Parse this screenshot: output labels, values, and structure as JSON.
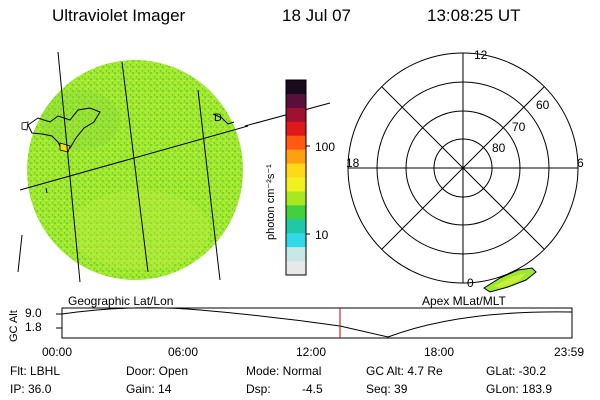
{
  "header": {
    "title": "Ultraviolet Imager",
    "date": "18 Jul 07",
    "time": "13:08:25 UT"
  },
  "colorbar": {
    "unit_label": "photon cm⁻²s⁻¹",
    "ticks": [
      "100",
      "10"
    ],
    "colors": [
      "#1a0a1e",
      "#5a0f3a",
      "#a01030",
      "#e01818",
      "#ff5a10",
      "#ffa010",
      "#ffd818",
      "#f0f020",
      "#a8e820",
      "#40d040",
      "#20c8a8",
      "#30d8e8",
      "#c8e8e8",
      "#e8e8e8"
    ]
  },
  "polar": {
    "hour_labels": {
      "top": "12",
      "left": "18",
      "right": "6",
      "bottom": "0"
    },
    "lat_labels": [
      "60",
      "70",
      "80"
    ]
  },
  "geo_image": {
    "fill_color": "#9ee830",
    "marker": "D"
  },
  "labels": {
    "left_panel": "Geographic Lat/Lon",
    "right_panel": "Apex MLat/MLT"
  },
  "alt_plot": {
    "ylabel": "GC Alt",
    "yticks": [
      "9.0",
      "1.8"
    ],
    "xticks": [
      "00:00",
      "06:00",
      "12:00",
      "18:00",
      "23:59"
    ],
    "current_time_color": "#cc0000"
  },
  "info": {
    "flt": "Flt: LBHL",
    "ip": "IP: 36.0",
    "door": "Door: Open",
    "gain": "Gain: 14",
    "mode": "Mode: Normal",
    "dsp": "Dsp:",
    "dsp_val": "-4.5",
    "gcalt": "GC Alt: 4.7 Re",
    "seq": "Seq: 39",
    "glat": "GLat: -30.2",
    "glon": "GLon: 183.9"
  }
}
